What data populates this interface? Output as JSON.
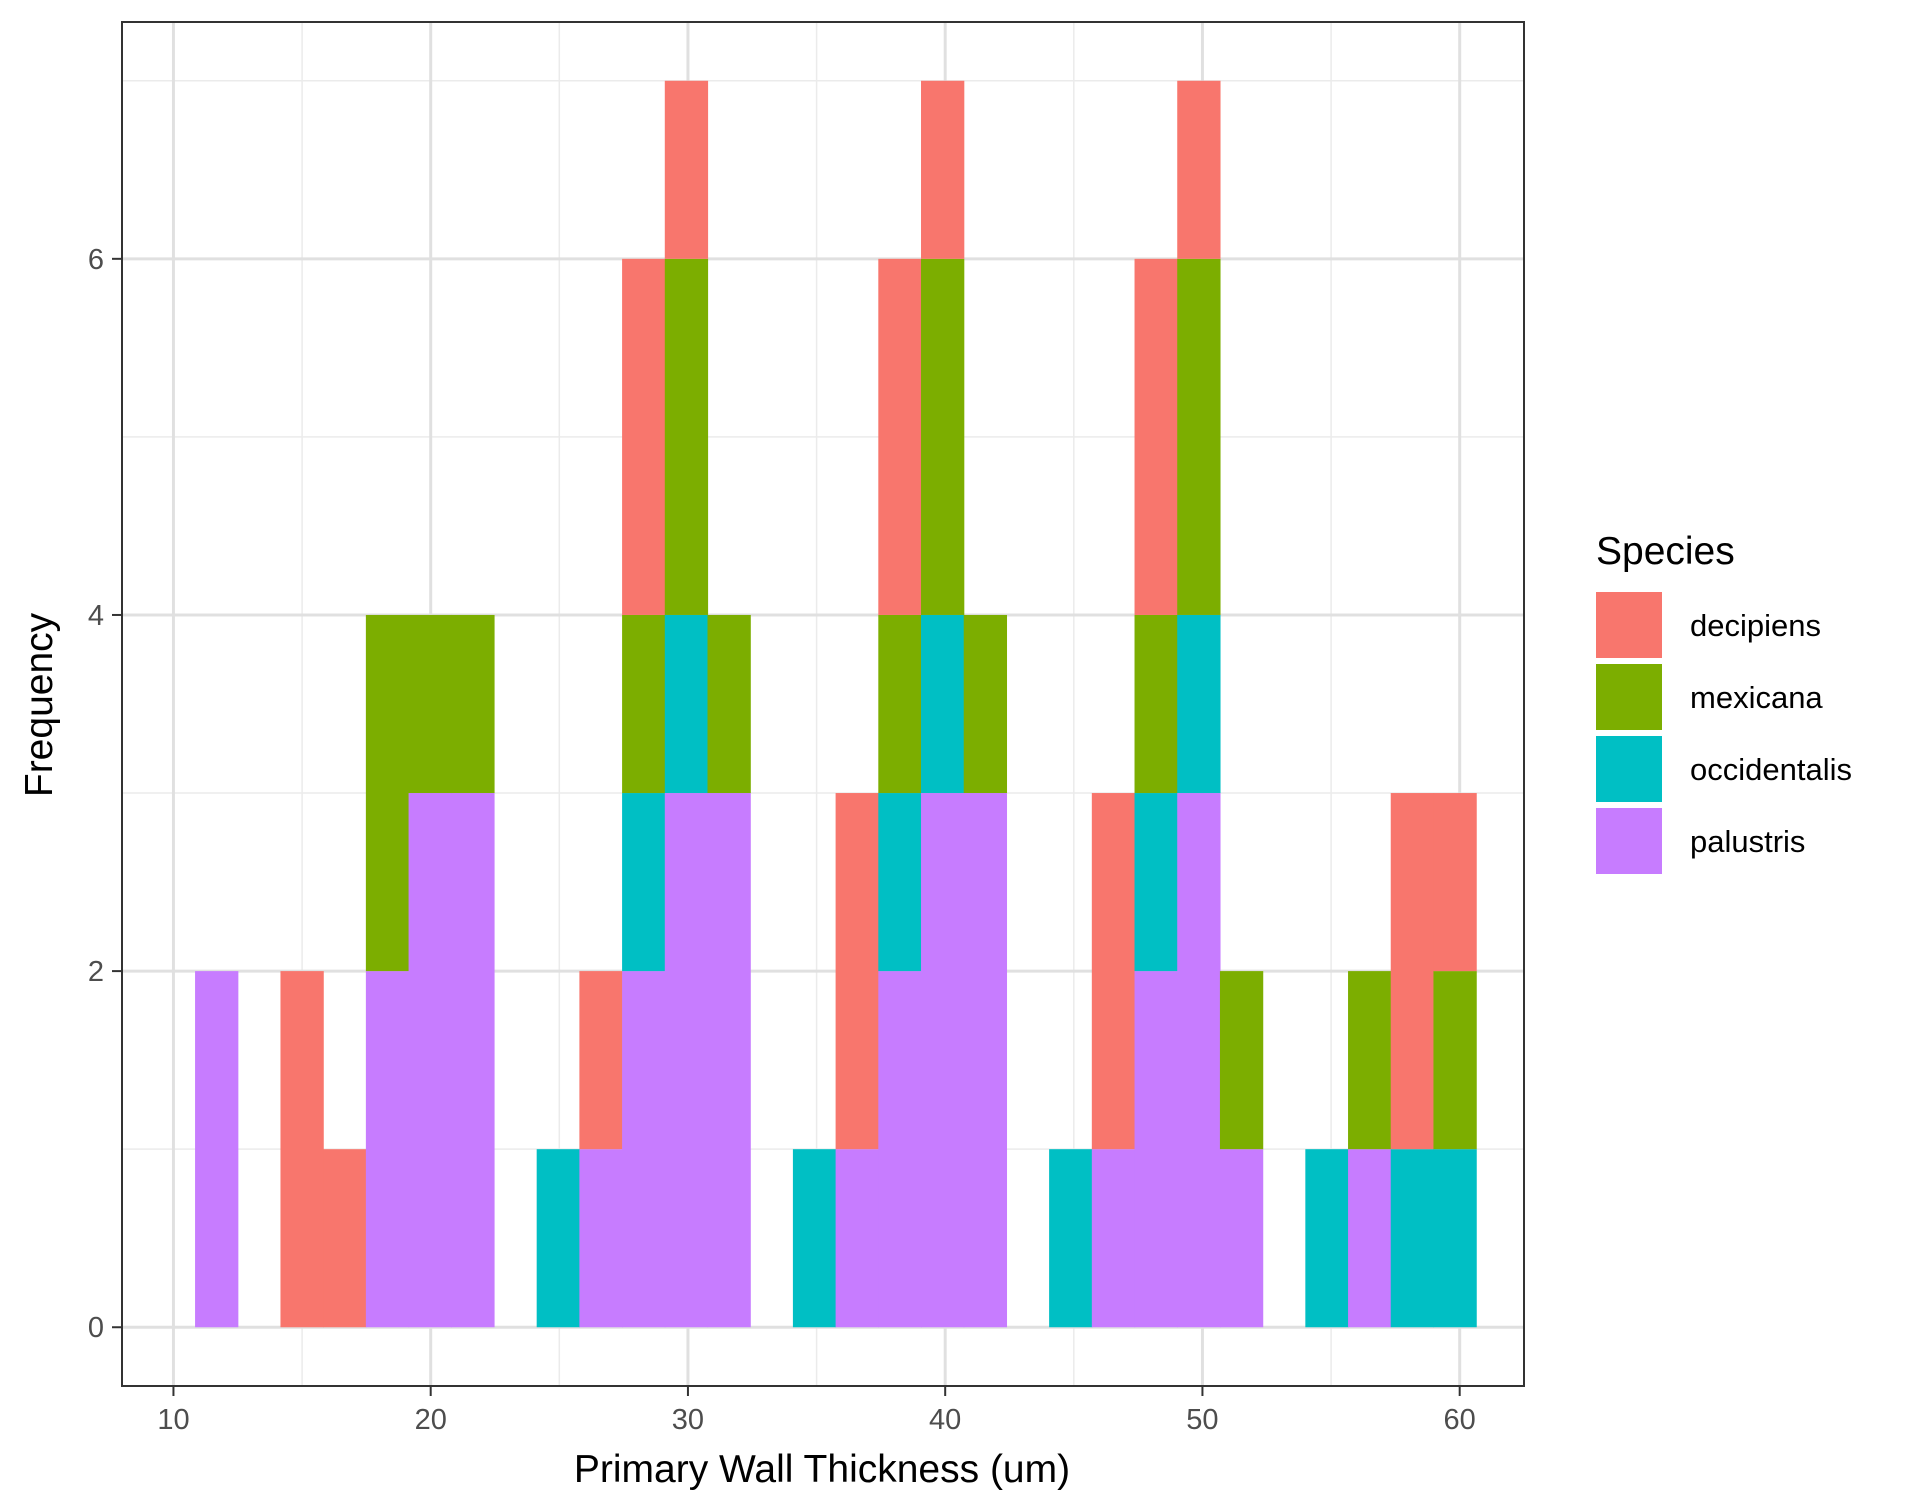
{
  "chart_data": {
    "type": "bar",
    "subtype": "stacked-histogram",
    "title": "",
    "xlabel": "Primary Wall Thickness (um)",
    "ylabel": "Frequency",
    "xlim": [
      8.0,
      62.5
    ],
    "ylim": [
      -0.33,
      7.33
    ],
    "x_ticks": [
      10,
      20,
      30,
      40,
      50,
      60
    ],
    "y_ticks": [
      0,
      2,
      4,
      6
    ],
    "bin_width": 1.66,
    "grid": true,
    "legend_position": "right",
    "legend_title": "Species",
    "bin_centers": [
      11.67,
      13.33,
      14.99,
      16.65,
      18.31,
      19.97,
      21.63,
      23.29,
      24.95,
      26.61,
      28.27,
      29.93,
      31.59,
      33.25,
      34.91,
      36.57,
      38.23,
      39.89,
      41.55,
      43.21,
      44.87,
      46.53,
      48.19,
      49.85,
      51.51,
      53.17,
      54.83,
      56.49,
      58.15,
      59.81
    ],
    "series": [
      {
        "name": "decipiens",
        "color": "#F8766D",
        "values": [
          0,
          0,
          2,
          1,
          0,
          0,
          0,
          0,
          0,
          1,
          2,
          1,
          0,
          0,
          0,
          2,
          2,
          1,
          0,
          0,
          0,
          2,
          2,
          1,
          0,
          0,
          0,
          0,
          2,
          1
        ]
      },
      {
        "name": "mexicana",
        "color": "#7CAE00",
        "values": [
          0,
          0,
          0,
          0,
          2,
          1,
          1,
          0,
          0,
          0,
          1,
          2,
          1,
          0,
          0,
          0,
          1,
          2,
          1,
          0,
          0,
          0,
          1,
          2,
          1,
          0,
          0,
          1,
          0,
          1
        ]
      },
      {
        "name": "occidentalis",
        "color": "#00BFC4",
        "values": [
          0,
          0,
          0,
          0,
          0,
          0,
          0,
          0,
          1,
          0,
          1,
          1,
          0,
          0,
          1,
          0,
          1,
          1,
          0,
          0,
          1,
          0,
          1,
          1,
          0,
          0,
          1,
          0,
          1,
          1
        ]
      },
      {
        "name": "palustris",
        "color": "#C77CFF",
        "values": [
          2,
          0,
          0,
          0,
          2,
          3,
          3,
          0,
          0,
          1,
          2,
          3,
          3,
          0,
          0,
          1,
          2,
          3,
          3,
          0,
          0,
          1,
          2,
          3,
          1,
          0,
          0,
          1,
          0,
          0
        ]
      }
    ]
  }
}
